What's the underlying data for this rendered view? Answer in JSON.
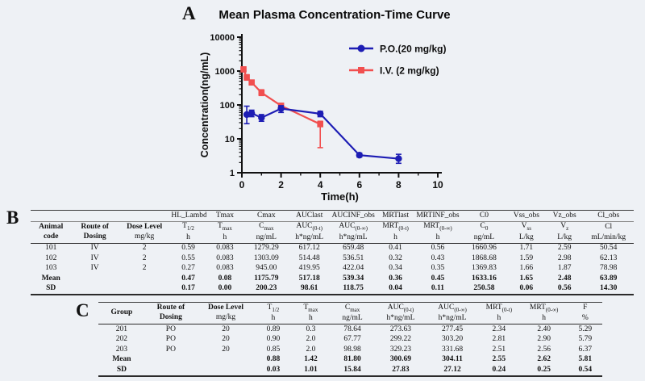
{
  "panels": {
    "a_label": "A",
    "b_label": "B",
    "c_label": "C"
  },
  "chart_data": {
    "type": "line",
    "title": "Mean Plasma Concentration-Time Curve",
    "xlabel": "Time(h)",
    "ylabel": "Concentration(ng/mL)",
    "y_scale": "log",
    "xlim": [
      0,
      10
    ],
    "ylim": [
      1,
      10000
    ],
    "x_ticks": [
      0,
      2,
      4,
      6,
      8,
      10
    ],
    "x_minor_ticks": [
      1,
      3,
      5,
      7,
      9
    ],
    "y_ticks": [
      10000,
      1000,
      100,
      10,
      1
    ],
    "grid": false,
    "legend_position": "top-right",
    "series": [
      {
        "name": "P.O.(20 mg/kg)",
        "color": "#1d1db4",
        "marker": "circle",
        "x": [
          0.25,
          0.5,
          1,
          2,
          4,
          6,
          8
        ],
        "y": [
          52,
          57,
          42,
          78,
          55,
          3.3,
          2.6
        ],
        "err_lo": [
          28,
          45,
          33,
          60,
          45,
          2.9,
          1.9
        ],
        "err_hi": [
          92,
          70,
          52,
          95,
          65,
          3.8,
          3.5
        ]
      },
      {
        "name": "I.V. (2 mg/kg)",
        "color": "#f14f4f",
        "marker": "square",
        "x": [
          0.083,
          0.25,
          0.5,
          1,
          2,
          4
        ],
        "y": [
          1120,
          650,
          460,
          230,
          95,
          27
        ],
        "err_lo": [
          950,
          540,
          390,
          190,
          83,
          5.5
        ],
        "err_hi": [
          1320,
          780,
          540,
          280,
          108,
          33
        ]
      }
    ]
  },
  "table_b": {
    "id_cols": [
      {
        "title": "Animal\ncode",
        "unit": ""
      },
      {
        "title": "Route of\nDosing",
        "unit": ""
      },
      {
        "title": "Dose Level",
        "unit": "mg/kg"
      }
    ],
    "raw_names": [
      "HL_Lambda_",
      "Tmax",
      "Cmax",
      "AUClast",
      "AUCINF_obs",
      "MRTlast",
      "MRTINF_obs",
      "C0",
      "Vss_obs",
      "Vz_obs",
      "Cl_obs"
    ],
    "symbols": [
      "T_{1/2}",
      "T_{max}",
      "C_{max}",
      "AUC_{(0-t)}",
      "AUC_{(0-∞)}",
      "MRT_{(0-t)}",
      "MRT_{(0-∞)}",
      "C_{0}",
      "V_{ss}",
      "V_{z}",
      "Cl"
    ],
    "units": [
      "h",
      "h",
      "ng/mL",
      "h*ng/mL",
      "h*ng/mL",
      "h",
      "h",
      "ng/mL",
      "L/kg",
      "L/kg",
      "mL/min/kg"
    ],
    "rows": [
      [
        "101",
        "IV",
        "2",
        "0.59",
        "0.083",
        "1279.29",
        "617.12",
        "659.48",
        "0.41",
        "0.56",
        "1660.96",
        "1.71",
        "2.59",
        "50.54"
      ],
      [
        "102",
        "IV",
        "2",
        "0.55",
        "0.083",
        "1303.09",
        "514.48",
        "536.51",
        "0.32",
        "0.43",
        "1868.68",
        "1.59",
        "2.98",
        "62.13"
      ],
      [
        "103",
        "IV",
        "2",
        "0.27",
        "0.083",
        "945.00",
        "419.95",
        "422.04",
        "0.34",
        "0.35",
        "1369.83",
        "1.66",
        "1.87",
        "78.98"
      ],
      [
        "Mean",
        "",
        "",
        "0.47",
        "0.08",
        "1175.79",
        "517.18",
        "539.34",
        "0.36",
        "0.45",
        "1633.16",
        "1.65",
        "2.48",
        "63.89"
      ],
      [
        "SD",
        "",
        "",
        "0.17",
        "0.00",
        "200.23",
        "98.61",
        "118.75",
        "0.04",
        "0.11",
        "250.58",
        "0.06",
        "0.56",
        "14.30"
      ]
    ],
    "bold_rows": [
      "Mean",
      "SD"
    ]
  },
  "table_c": {
    "id_cols": [
      {
        "title": "Group",
        "unit": ""
      },
      {
        "title": "Route of\nDosing",
        "unit": ""
      },
      {
        "title": "Dose Level",
        "unit": "mg/kg"
      }
    ],
    "symbols": [
      "T_{1/2}",
      "T_{max}",
      "C_{max}",
      "AUC_{(0-t)}",
      "AUC_{(0-∞)}",
      "MRT_{(0-t)}",
      "MRT_{(0-∞)}",
      "F"
    ],
    "units": [
      "h",
      "h",
      "ng/mL",
      "h*ng/mL",
      "h*ng/mL",
      "h",
      "h",
      "%"
    ],
    "rows": [
      [
        "201",
        "PO",
        "20",
        "0.89",
        "0.3",
        "78.64",
        "273.63",
        "277.45",
        "2.34",
        "2.40",
        "5.29"
      ],
      [
        "202",
        "PO",
        "20",
        "0.90",
        "2.0",
        "67.77",
        "299.22",
        "303.20",
        "2.81",
        "2.90",
        "5.79"
      ],
      [
        "203",
        "PO",
        "20",
        "0.85",
        "2.0",
        "98.98",
        "329.23",
        "331.68",
        "2.51",
        "2.56",
        "6.37"
      ],
      [
        "Mean",
        "",
        "",
        "0.88",
        "1.42",
        "81.80",
        "300.69",
        "304.11",
        "2.55",
        "2.62",
        "5.81"
      ],
      [
        "SD",
        "",
        "",
        "0.03",
        "1.01",
        "15.84",
        "27.83",
        "27.12",
        "0.24",
        "0.25",
        "0.54"
      ]
    ],
    "bold_rows": [
      "Mean",
      "SD"
    ]
  }
}
